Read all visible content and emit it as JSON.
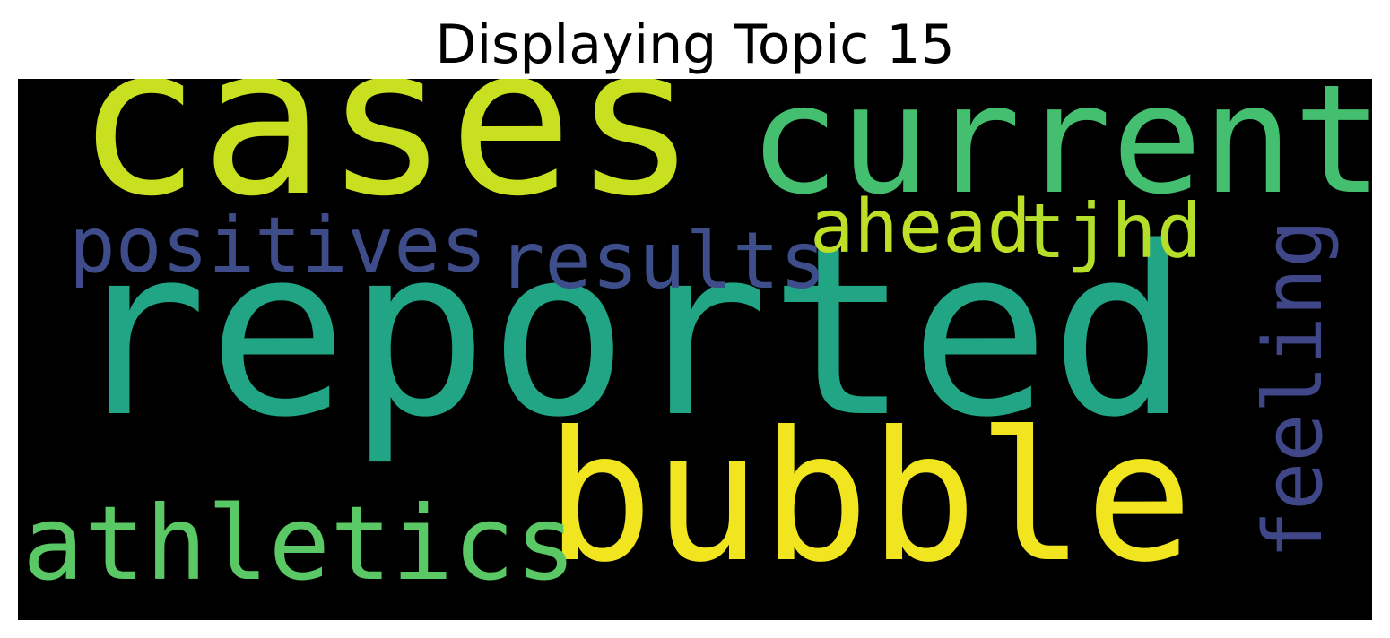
{
  "title": "Displaying Topic 15",
  "wordcloud": {
    "background": "#000000",
    "words": [
      {
        "key": "reported",
        "text": "reported",
        "color": "#21a585"
      },
      {
        "key": "cases",
        "text": "cases",
        "color": "#c8e020"
      },
      {
        "key": "bubble",
        "text": "bubble",
        "color": "#f0e51f"
      },
      {
        "key": "current",
        "text": "current",
        "color": "#44bf70"
      },
      {
        "key": "athletics",
        "text": "athletics",
        "color": "#5ac864"
      },
      {
        "key": "positives",
        "text": "positives",
        "color": "#3e4c8a"
      },
      {
        "key": "results",
        "text": "results",
        "color": "#3d4e8a"
      },
      {
        "key": "ahead",
        "text": "ahead",
        "color": "#bddf26"
      },
      {
        "key": "tjhd",
        "text": "tjhd",
        "color": "#b5de2b"
      },
      {
        "key": "feeling",
        "text": "feeling",
        "color": "#3f4788"
      }
    ]
  }
}
